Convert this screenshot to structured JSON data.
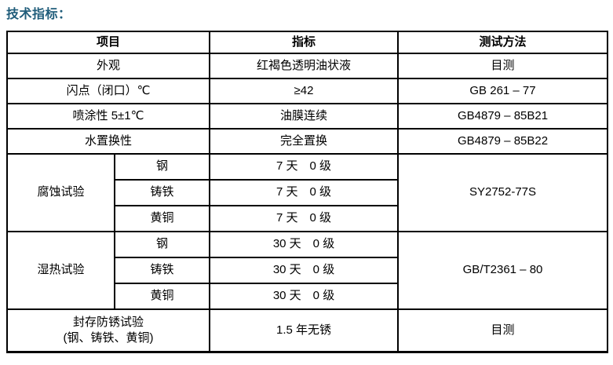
{
  "page": {
    "title": "技术指标："
  },
  "table": {
    "headers": {
      "item": "项目",
      "indicator": "指标",
      "method": "测试方法"
    },
    "rows": {
      "appearance": {
        "item": "外观",
        "indicator": "红褐色透明油状液",
        "method": "目测"
      },
      "flash_point": {
        "item": "闪点（闭口）℃",
        "indicator": "≥42",
        "method": "GB 261 – 77"
      },
      "sprayability": {
        "item": "喷涂性 5±1℃",
        "indicator": "油膜连续",
        "method": "GB4879 – 85B21"
      },
      "water_displacement": {
        "item": "水置换性",
        "indicator": "完全置换",
        "method": "GB4879 – 85B22"
      },
      "corrosion": {
        "item": "腐蚀试验",
        "method": "SY2752-77S",
        "sub": [
          {
            "material": "钢",
            "indicator": "7 天　0 级"
          },
          {
            "material": "铸铁",
            "indicator": "7 天　0 级"
          },
          {
            "material": "黄铜",
            "indicator": "7 天　0 级"
          }
        ]
      },
      "damp_heat": {
        "item": "湿热试验",
        "method": "GB/T2361 – 80",
        "sub": [
          {
            "material": "钢",
            "indicator": "30 天　0 级"
          },
          {
            "material": "铸铁",
            "indicator": "30 天　0 级"
          },
          {
            "material": "黄铜",
            "indicator": "30 天　0 级"
          }
        ]
      },
      "sealed_rust": {
        "item_line1": "封存防锈试验",
        "item_line2": "(钢、铸铁、黄铜)",
        "indicator": "1.5 年无锈",
        "method": "目测"
      }
    }
  },
  "colors": {
    "title_text": "#1F5C7A",
    "border": "#000000",
    "body_text": "#000000",
    "background": "#FFFFFF"
  }
}
